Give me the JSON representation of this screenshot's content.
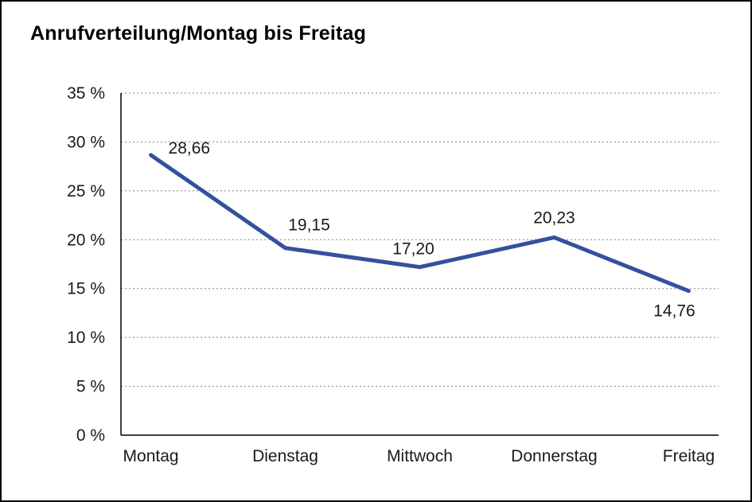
{
  "page": {
    "background_color": "#ffffff",
    "border_color": "#000000"
  },
  "chart_data": {
    "type": "line",
    "title": "Anrufverteilung/Montag bis Freitag",
    "categories": [
      "Montag",
      "Dienstag",
      "Mittwoch",
      "Donnerstag",
      "Freitag"
    ],
    "series": [
      {
        "values": [
          28.66,
          19.15,
          17.2,
          20.23,
          14.76
        ],
        "point_labels": [
          "28,66",
          "19,15",
          "17,20",
          "20,23",
          "14,76"
        ],
        "color": "#34519E"
      }
    ],
    "ylim": [
      0,
      35
    ],
    "ytick_step": 5,
    "ytick_labels": [
      "0 %",
      "5 %",
      "10 %",
      "15 %",
      "20 %",
      "25 %",
      "30 %",
      "35 %"
    ],
    "xlabel": "",
    "ylabel": "",
    "grid": "horizontal-dotted",
    "legend_position": "none"
  }
}
